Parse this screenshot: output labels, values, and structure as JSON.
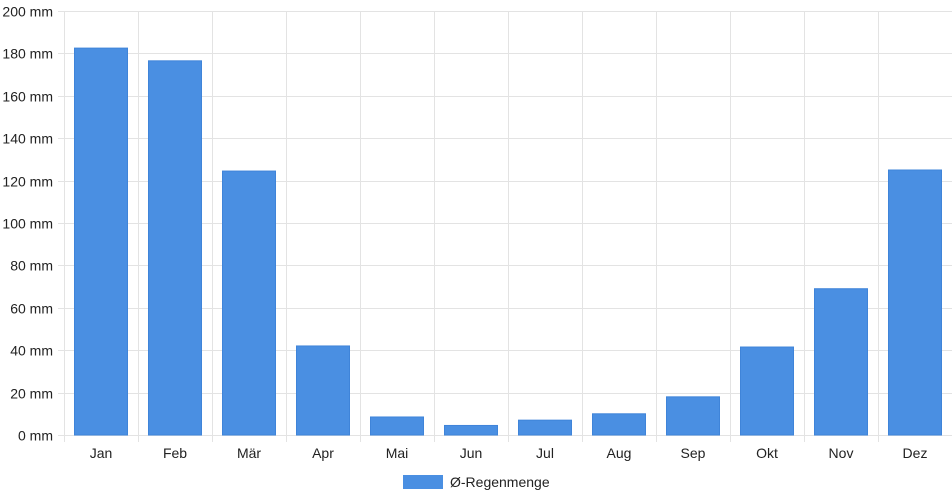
{
  "chart_data": {
    "type": "bar",
    "categories": [
      "Jan",
      "Feb",
      "Mär",
      "Apr",
      "Mai",
      "Jun",
      "Jul",
      "Aug",
      "Sep",
      "Okt",
      "Nov",
      "Dez"
    ],
    "series": [
      {
        "name": "Ø-Regenmenge",
        "values": [
          182.5,
          176.5,
          124.5,
          42,
          8.5,
          4.5,
          7,
          10,
          18,
          41.5,
          69,
          125
        ],
        "color": "#4a8fe2"
      }
    ],
    "ylim": [
      0,
      200
    ],
    "y_tick_step": 20,
    "y_unit_suffix": " mm",
    "grid": true,
    "legend_position": "bottom"
  }
}
